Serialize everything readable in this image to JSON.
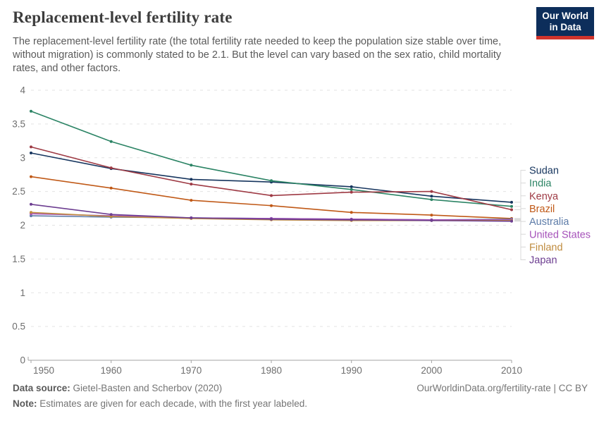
{
  "header": {
    "title": "Replacement-level fertility rate",
    "subtitle": "The replacement-level fertility rate (the total fertility rate needed to keep the population size stable over time, without migration) is commonly stated to be 2.1. But the level can vary based on the sex ratio, child mortality rates, and other factors.",
    "logo": {
      "line1": "Our World",
      "line2": "in Data",
      "bg_color": "#0d2e5b",
      "accent_color": "#d0342c"
    }
  },
  "chart_data": {
    "type": "line",
    "title": "Replacement-level fertility rate",
    "x": [
      1950,
      1960,
      1970,
      1980,
      1990,
      2000,
      2010
    ],
    "x_tick_labels": [
      "1950",
      "1960",
      "1970",
      "1980",
      "1990",
      "2000",
      "2010"
    ],
    "y_ticks": [
      0,
      0.5,
      1,
      1.5,
      2,
      2.5,
      3,
      3.5,
      4
    ],
    "ylim": [
      0,
      4
    ],
    "grid": true,
    "legend_position": "right",
    "series": [
      {
        "name": "Sudan",
        "color": "#16355e",
        "values": [
          3.07,
          2.84,
          2.68,
          2.64,
          2.57,
          2.43,
          2.34
        ]
      },
      {
        "name": "India",
        "color": "#2c8465",
        "values": [
          3.69,
          3.24,
          2.89,
          2.66,
          2.53,
          2.38,
          2.28
        ]
      },
      {
        "name": "Kenya",
        "color": "#9e3a44",
        "values": [
          3.16,
          2.85,
          2.61,
          2.44,
          2.49,
          2.5,
          2.23
        ]
      },
      {
        "name": "Brazil",
        "color": "#c05917",
        "values": [
          2.72,
          2.55,
          2.37,
          2.29,
          2.19,
          2.15,
          2.1
        ]
      },
      {
        "name": "Australia",
        "color": "#5d7ca8",
        "values": [
          2.14,
          2.12,
          2.11,
          2.1,
          2.09,
          2.08,
          2.09
        ]
      },
      {
        "name": "United States",
        "color": "#a652ba",
        "values": [
          2.17,
          2.14,
          2.11,
          2.1,
          2.09,
          2.08,
          2.08
        ]
      },
      {
        "name": "Finland",
        "color": "#bf8b3e",
        "values": [
          2.19,
          2.13,
          2.1,
          2.08,
          2.07,
          2.07,
          2.07
        ]
      },
      {
        "name": "Japan",
        "color": "#6d3e91",
        "values": [
          2.31,
          2.16,
          2.11,
          2.09,
          2.08,
          2.07,
          2.06
        ]
      }
    ]
  },
  "footer": {
    "datasource_label": "Data source:",
    "datasource": "Gietel-Basten and Scherbov (2020)",
    "note_label": "Note:",
    "note": "Estimates are given for each decade, with the first year labeled.",
    "link": "OurWorldinData.org/fertility-rate | CC BY"
  }
}
